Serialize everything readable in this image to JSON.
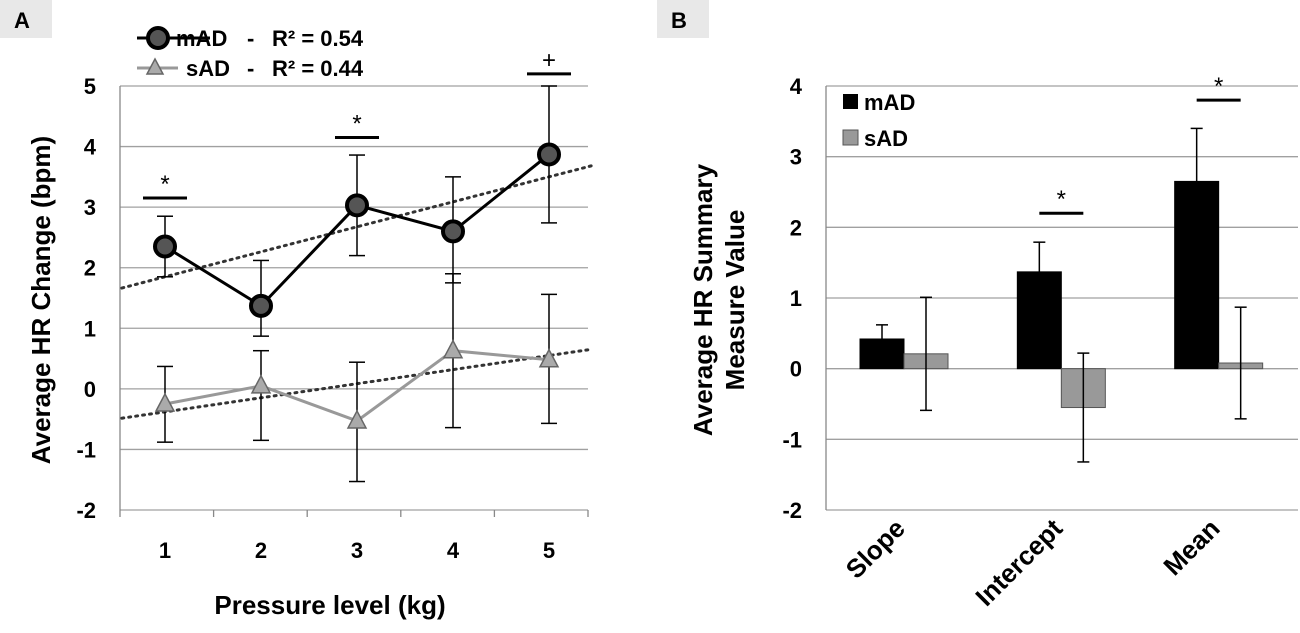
{
  "chart_data": [
    {
      "panel": "A",
      "type": "line",
      "xlabel": "Pressure level (kg)",
      "ylabel": "Average HR Change (bpm)",
      "x": [
        1,
        2,
        3,
        4,
        5
      ],
      "xticks": [
        "1",
        "2",
        "3",
        "4",
        "5"
      ],
      "ylim": [
        -2,
        5
      ],
      "yticks": [
        "-2",
        "-1",
        "0",
        "1",
        "2",
        "3",
        "4",
        "5"
      ],
      "grid": true,
      "series": [
        {
          "name": "mAD",
          "r2_label": "R² = 0.54",
          "values": [
            2.35,
            1.37,
            3.03,
            2.6,
            3.87
          ],
          "err_lo": [
            0.5,
            0.5,
            0.83,
            0.85,
            1.13
          ],
          "err_hi": [
            0.5,
            0.75,
            0.83,
            0.9,
            1.13
          ],
          "trend": [
            1.85,
            3.5
          ],
          "color": "#000000",
          "marker": "circle"
        },
        {
          "name": "sAD",
          "r2_label": "R² = 0.44",
          "values": [
            -0.25,
            0.05,
            -0.53,
            0.63,
            0.48
          ],
          "err_lo": [
            0.63,
            0.9,
            1.0,
            1.27,
            1.05
          ],
          "err_hi": [
            0.62,
            0.58,
            0.97,
            1.27,
            1.08
          ],
          "trend": [
            -0.38,
            0.55
          ],
          "color": "#999999",
          "marker": "triangle"
        }
      ],
      "significance": [
        {
          "x": 1,
          "y": 3.15,
          "label": "*"
        },
        {
          "x": 3,
          "y": 4.15,
          "label": "*"
        },
        {
          "x": 5,
          "y": 5.2,
          "label": "+"
        }
      ],
      "legend_dash": "-"
    },
    {
      "panel": "B",
      "type": "bar",
      "xlabel": "",
      "ylabel": "Average HR Summary Measure Value",
      "categories": [
        "Slope",
        "Intercept",
        "Mean"
      ],
      "ylim": [
        -2,
        4
      ],
      "yticks": [
        "-2",
        "-1",
        "0",
        "1",
        "2",
        "3",
        "4"
      ],
      "grid": true,
      "series": [
        {
          "name": "mAD",
          "values": [
            0.42,
            1.37,
            2.65
          ],
          "err": [
            0.2,
            0.42,
            0.75
          ],
          "color": "#000000"
        },
        {
          "name": "sAD",
          "values": [
            0.21,
            -0.55,
            0.08
          ],
          "err": [
            0.8,
            0.77,
            0.79
          ],
          "color": "#999999"
        }
      ],
      "significance": [
        {
          "category": 1,
          "y": 2.2,
          "label": "*"
        },
        {
          "category": 2,
          "y": 3.8,
          "label": "*"
        }
      ]
    }
  ]
}
